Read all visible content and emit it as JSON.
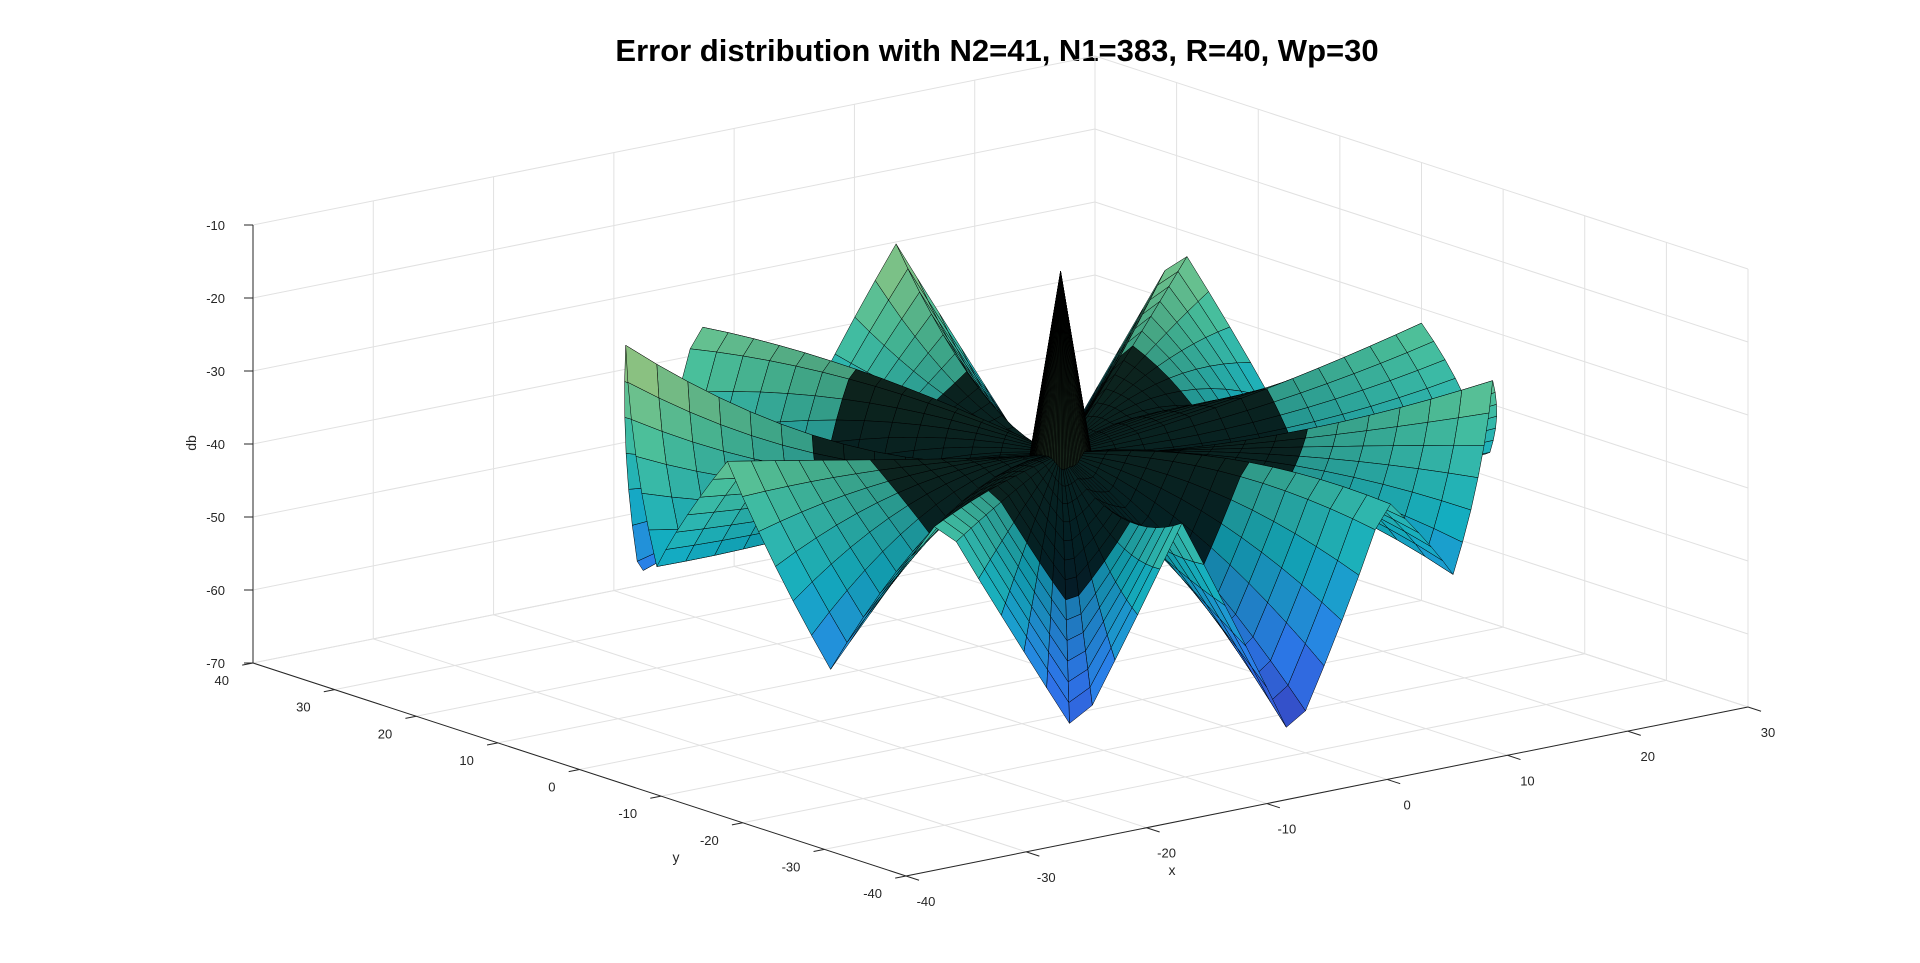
{
  "chart_data": {
    "type": "surface",
    "title": "Error distribution with N2=41, N1=383, R=40, Wp=30",
    "xlabel": "x",
    "ylabel": "y",
    "zlabel": "db",
    "xlim": [
      -40,
      30
    ],
    "ylim": [
      -40,
      40
    ],
    "zlim": [
      -70,
      -10
    ],
    "x_ticks": [
      -40,
      -30,
      -20,
      -10,
      0,
      10,
      20,
      30
    ],
    "y_ticks": [
      -40,
      -30,
      -20,
      -10,
      0,
      10,
      20,
      30,
      40
    ],
    "z_ticks": [
      -70,
      -60,
      -50,
      -40,
      -30,
      -20,
      -10
    ],
    "grid": true,
    "colormap": "parula",
    "colormap_stops": [
      "#3e26a8",
      "#2f7df6",
      "#14b3c7",
      "#4cc5a0",
      "#a9c97a",
      "#e8c35e"
    ],
    "edge_color": "#000000",
    "surface": {
      "radius": 30,
      "rim_db": [
        {
          "angle_deg": 0,
          "db": -32
        },
        {
          "angle_deg": 22,
          "db": -54
        },
        {
          "angle_deg": 40,
          "db": -26
        },
        {
          "angle_deg": 58,
          "db": -58
        },
        {
          "angle_deg": 78,
          "db": -24
        },
        {
          "angle_deg": 95,
          "db": -50
        },
        {
          "angle_deg": 112,
          "db": -28
        },
        {
          "angle_deg": 130,
          "db": -60
        },
        {
          "angle_deg": 150,
          "db": -22
        },
        {
          "angle_deg": 168,
          "db": -48
        },
        {
          "angle_deg": 186,
          "db": -30
        },
        {
          "angle_deg": 204,
          "db": -56
        },
        {
          "angle_deg": 220,
          "db": -34
        },
        {
          "angle_deg": 238,
          "db": -64
        },
        {
          "angle_deg": 252,
          "db": -36
        },
        {
          "angle_deg": 268,
          "db": -68
        },
        {
          "angle_deg": 284,
          "db": -38
        },
        {
          "angle_deg": 300,
          "db": -52
        },
        {
          "angle_deg": 318,
          "db": -30
        },
        {
          "angle_deg": 338,
          "db": -46
        }
      ],
      "inner_db": -40,
      "center_spike_db": -15
    }
  }
}
